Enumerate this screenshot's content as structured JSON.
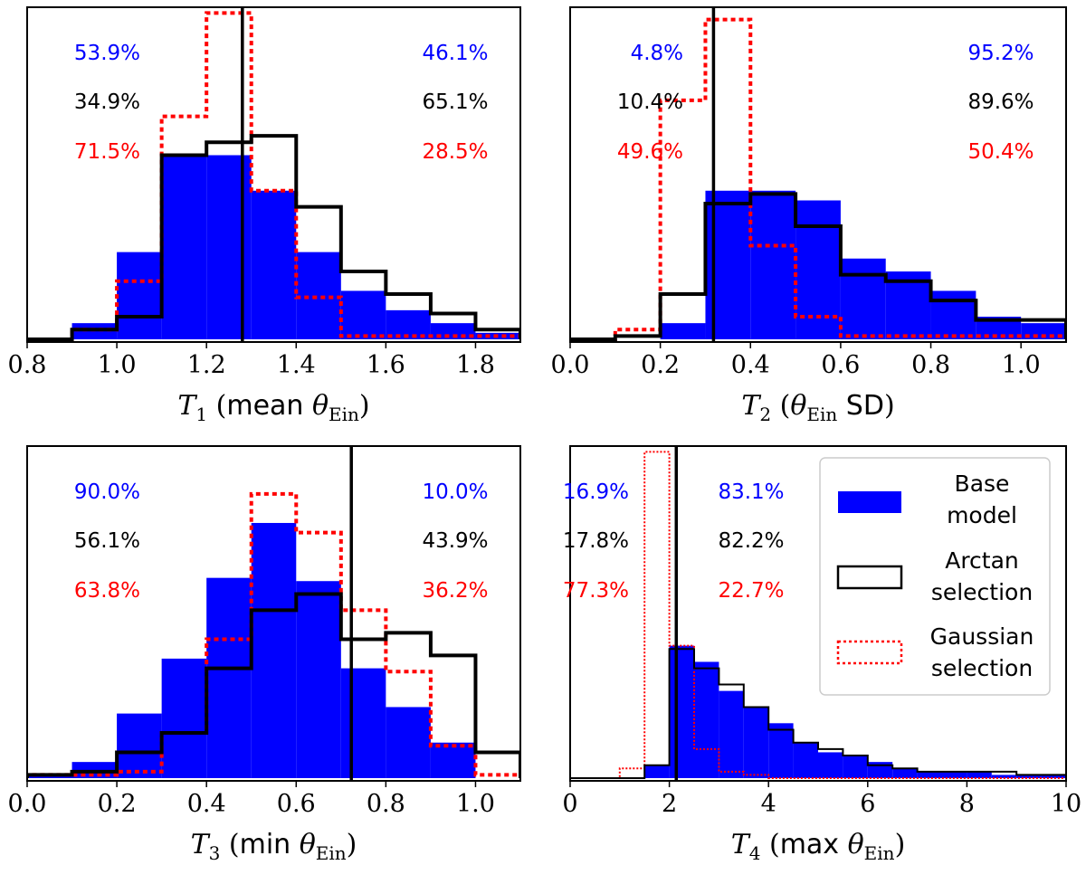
{
  "colors": {
    "base": "#0000ff",
    "arctan": "#000000",
    "gauss": "#ff0000",
    "text_blue": "#0000ff",
    "text_black": "#000000",
    "text_red": "#ff0000"
  },
  "legend": {
    "base_line1": "Base",
    "base_line2": "model",
    "arctan_line1": "Arctan",
    "arctan_line2": "selection",
    "gauss_line1": "Gaussian",
    "gauss_line2": "selection"
  },
  "chart_data": [
    {
      "type": "histogram",
      "xlabel": {
        "var": "T",
        "sub": "1",
        "open": " (",
        "word": "mean",
        "theta": "θ",
        "tsub": "Ein",
        "close": ")"
      },
      "xlim": [
        0.8,
        1.9
      ],
      "ylim": [
        0,
        1
      ],
      "xticks": [
        0.8,
        1.0,
        1.2,
        1.4,
        1.6,
        1.8
      ],
      "xtick_labels": [
        "0.8",
        "1.0",
        "1.2",
        "1.4",
        "1.6",
        "1.8"
      ],
      "observed": 1.28,
      "bin_edges": [
        0.8,
        0.9,
        1.0,
        1.1,
        1.2,
        1.3,
        1.4,
        1.5,
        1.6,
        1.7,
        1.8,
        1.9
      ],
      "base_model": [
        0,
        0.05,
        0.27,
        0.57,
        0.57,
        0.46,
        0.27,
        0.15,
        0.09,
        0.05,
        0.02
      ],
      "arctan_selection": [
        0,
        0.03,
        0.07,
        0.57,
        0.61,
        0.63,
        0.41,
        0.21,
        0.14,
        0.08,
        0.03
      ],
      "gaussian_selection": [
        0,
        0.03,
        0.18,
        0.69,
        1.01,
        0.46,
        0.13,
        0.01,
        0.01,
        0.01,
        0.01
      ],
      "percentages": {
        "blue": [
          "53.9%",
          "46.1%"
        ],
        "black": [
          "34.9%",
          "65.1%"
        ],
        "red": [
          "71.5%",
          "28.5%"
        ]
      }
    },
    {
      "type": "histogram",
      "xlabel": {
        "var": "T",
        "sub": "2",
        "open": " (",
        "theta": "θ",
        "tsub": "Ein",
        "word": "SD",
        "close": ")"
      },
      "xlim": [
        0.0,
        1.1
      ],
      "ylim": [
        0,
        1
      ],
      "xticks": [
        0.0,
        0.2,
        0.4,
        0.6,
        0.8,
        1.0
      ],
      "xtick_labels": [
        "0.0",
        "0.2",
        "0.4",
        "0.6",
        "0.8",
        "1.0"
      ],
      "observed": 0.318,
      "bin_edges": [
        0.0,
        0.1,
        0.2,
        0.3,
        0.4,
        0.5,
        0.6,
        0.7,
        0.8,
        0.9,
        1.0,
        1.1
      ],
      "base_model": [
        0,
        0,
        0.05,
        0.46,
        0.46,
        0.43,
        0.25,
        0.21,
        0.15,
        0.07,
        0.05
      ],
      "arctan_selection": [
        0,
        0.01,
        0.14,
        0.42,
        0.45,
        0.35,
        0.2,
        0.18,
        0.12,
        0.06,
        0.06
      ],
      "gaussian_selection": [
        0,
        0.03,
        0.74,
        0.99,
        0.29,
        0.07,
        0.01,
        0.01,
        0.01,
        0.01,
        0.01
      ],
      "percentages": {
        "blue": [
          "4.8%",
          "95.2%"
        ],
        "black": [
          "10.4%",
          "89.6%"
        ],
        "red": [
          "49.6%",
          "50.4%"
        ]
      }
    },
    {
      "type": "histogram",
      "xlabel": {
        "var": "T",
        "sub": "3",
        "open": " (",
        "word": "min",
        "theta": "θ",
        "tsub": "Ein",
        "close": ")"
      },
      "xlim": [
        0.0,
        1.1
      ],
      "ylim": [
        0,
        1
      ],
      "xticks": [
        0.0,
        0.2,
        0.4,
        0.6,
        0.8,
        1.0
      ],
      "xtick_labels": [
        "0.0",
        "0.2",
        "0.4",
        "0.6",
        "0.8",
        "1.0"
      ],
      "observed": 0.723,
      "bin_edges": [
        0.0,
        0.1,
        0.2,
        0.3,
        0.4,
        0.5,
        0.6,
        0.7,
        0.8,
        0.9,
        1.0,
        1.1
      ],
      "base_model": [
        0.01,
        0.05,
        0.2,
        0.37,
        0.62,
        0.79,
        0.61,
        0.34,
        0.22,
        0.11,
        0
      ],
      "arctan_selection": [
        0.01,
        0.02,
        0.08,
        0.14,
        0.34,
        0.52,
        0.57,
        0.43,
        0.45,
        0.38,
        0.08
      ],
      "gaussian_selection": [
        0.01,
        0.01,
        0.02,
        0.14,
        0.43,
        0.88,
        0.76,
        0.52,
        0.33,
        0.1,
        0.01
      ],
      "percentages": {
        "blue": [
          "90.0%",
          "10.0%"
        ],
        "black": [
          "56.1%",
          "43.9%"
        ],
        "red": [
          "63.8%",
          "36.2%"
        ]
      }
    },
    {
      "type": "histogram",
      "xlabel": {
        "var": "T",
        "sub": "4",
        "open": " (",
        "word": "max",
        "theta": "θ",
        "tsub": "Ein",
        "close": ")"
      },
      "xlim": [
        0,
        10
      ],
      "ylim": [
        0,
        1
      ],
      "xticks": [
        0,
        2,
        4,
        6,
        8,
        10
      ],
      "xtick_labels": [
        "0",
        "2",
        "4",
        "6",
        "8",
        "10"
      ],
      "observed": 2.14,
      "bin_edges": [
        0,
        0.5,
        1.0,
        1.5,
        2.0,
        2.5,
        3.0,
        3.5,
        4.0,
        4.5,
        5.0,
        5.5,
        6.0,
        6.5,
        7.0,
        7.5,
        8.0,
        8.5,
        9.0,
        9.5,
        10.0
      ],
      "base_model": [
        0,
        0,
        0,
        0.04,
        0.41,
        0.36,
        0.27,
        0.22,
        0.17,
        0.11,
        0.08,
        0.07,
        0.05,
        0.03,
        0.02,
        0.02,
        0.02,
        0.01,
        0.01,
        0.01
      ],
      "arctan_selection": [
        0,
        0,
        0,
        0.04,
        0.4,
        0.34,
        0.29,
        0.22,
        0.15,
        0.11,
        0.09,
        0.07,
        0.04,
        0.03,
        0.02,
        0.02,
        0.02,
        0.02,
        0.01,
        0.01
      ],
      "gaussian_selection": [
        0,
        0,
        0.03,
        1.01,
        0.41,
        0.09,
        0.02,
        0.01,
        0,
        0,
        0,
        0,
        0,
        0,
        0,
        0,
        0,
        0,
        0,
        0
      ],
      "percentages": {
        "blue": [
          "16.9%",
          "83.1%"
        ],
        "black": [
          "17.8%",
          "82.2%"
        ],
        "red": [
          "77.3%",
          "22.7%"
        ]
      }
    }
  ]
}
